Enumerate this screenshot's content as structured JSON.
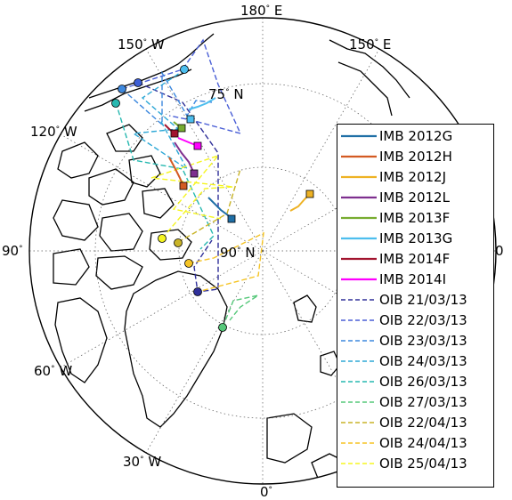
{
  "map": {
    "type": "polar-stereographic",
    "center": "North Pole",
    "graticule_labels": [
      {
        "id": "lon-180E",
        "value": "180",
        "suffix": "E"
      },
      {
        "id": "lon-150W",
        "value": "150",
        "suffix": "W"
      },
      {
        "id": "lon-150E",
        "value": "150",
        "suffix": "E"
      },
      {
        "id": "lon-120W",
        "value": "120",
        "suffix": "W"
      },
      {
        "id": "lat-75N",
        "value": "75",
        "suffix": "N"
      },
      {
        "id": "lon-90W",
        "value": "90",
        "suffix": ""
      },
      {
        "id": "lat-90N",
        "value": "90",
        "suffix": "N"
      },
      {
        "id": "lon-90E",
        "value": "0",
        "suffix": ""
      },
      {
        "id": "lon-60W",
        "value": "60",
        "suffix": "W"
      },
      {
        "id": "lon-30W",
        "value": "30",
        "suffix": "W"
      },
      {
        "id": "lon-0",
        "value": "0",
        "suffix": ""
      }
    ]
  },
  "legend": {
    "entries": [
      {
        "label": "IMB 2012G",
        "color": "#1f6fa6",
        "style": "solid"
      },
      {
        "label": "IMB 2012H",
        "color": "#d35a22",
        "style": "solid"
      },
      {
        "label": "IMB 2012J",
        "color": "#eeb224",
        "style": "solid"
      },
      {
        "label": "IMB 2012L",
        "color": "#7e2f8e",
        "style": "solid"
      },
      {
        "label": "IMB 2013F",
        "color": "#77ac30",
        "style": "solid"
      },
      {
        "label": "IMB 2013G",
        "color": "#4dbeee",
        "style": "solid"
      },
      {
        "label": "IMB 2014F",
        "color": "#a2142f",
        "style": "solid"
      },
      {
        "label": "IMB 2014I",
        "color": "#ff00ff",
        "style": "solid"
      },
      {
        "label": "OIB 21/03/13",
        "color": "#30309a",
        "style": "dashed"
      },
      {
        "label": "OIB 22/03/13",
        "color": "#4a5fd6",
        "style": "dashed"
      },
      {
        "label": "OIB 23/03/13",
        "color": "#3d88de",
        "style": "dashed"
      },
      {
        "label": "OIB 24/03/13",
        "color": "#2ea8d6",
        "style": "dashed"
      },
      {
        "label": "OIB 26/03/13",
        "color": "#27b8b0",
        "style": "dashed"
      },
      {
        "label": "OIB 27/03/13",
        "color": "#56c87a",
        "style": "dashed"
      },
      {
        "label": "OIB 22/04/13",
        "color": "#c9b428",
        "style": "dashed"
      },
      {
        "label": "OIB 24/04/13",
        "color": "#f5c425",
        "style": "dashed"
      },
      {
        "label": "OIB 25/04/13",
        "color": "#f5f520",
        "style": "dashed"
      }
    ]
  }
}
